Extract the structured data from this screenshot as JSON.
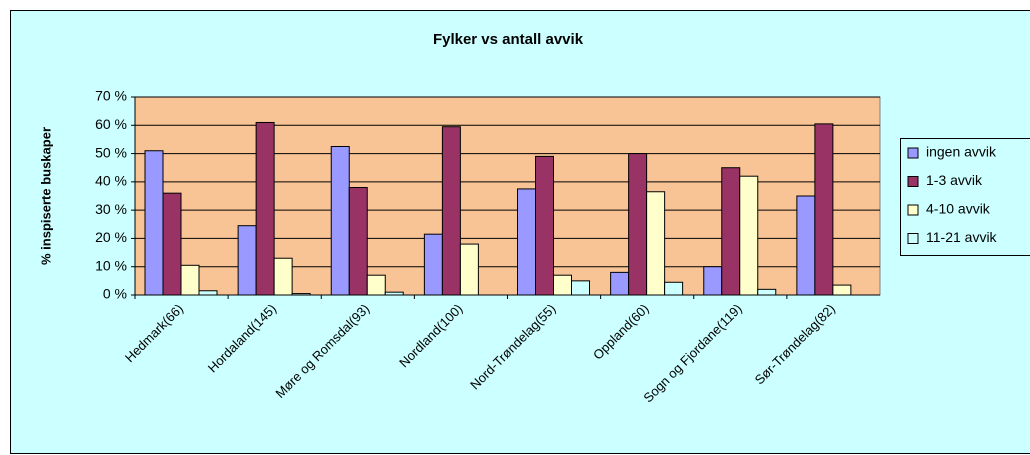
{
  "chart_data": {
    "type": "bar",
    "title": "Fylker vs antall avvik",
    "y_label": "% inspiserte buskaper",
    "categories": [
      "Hedmark(66)",
      "Hordaland(145)",
      "Møre og Romsdal(93)",
      "Nordland(100)",
      "Nord-Trøndelag(55)",
      "Oppland(60)",
      "Sogn og Fjordane(119)",
      "Sør-Trøndelag(82)"
    ],
    "series": [
      {
        "name": "ingen avvik",
        "color": "#9999ff",
        "values": [
          51,
          24.5,
          52.5,
          21.5,
          37.5,
          8,
          10,
          35
        ]
      },
      {
        "name": "1-3 avvik",
        "color": "#993366",
        "values": [
          36,
          61,
          38,
          59.5,
          49,
          50,
          45,
          60.5
        ]
      },
      {
        "name": "4-10 avvik",
        "color": "#ffffcc",
        "values": [
          10.5,
          13,
          7,
          18,
          7,
          36.5,
          42,
          3.5
        ]
      },
      {
        "name": "11-21 avvik",
        "color": "#ccffff",
        "values": [
          1.5,
          0.5,
          1,
          0,
          5,
          4.5,
          2,
          0
        ]
      }
    ],
    "ylim": [
      0,
      70
    ],
    "yticks": [
      {
        "value": 0,
        "label": "0 %"
      },
      {
        "value": 10,
        "label": "10 %"
      },
      {
        "value": 20,
        "label": "20 %"
      },
      {
        "value": 30,
        "label": "30 %"
      },
      {
        "value": 40,
        "label": "40 %"
      },
      {
        "value": 50,
        "label": "50 %"
      },
      {
        "value": 60,
        "label": "60 %"
      },
      {
        "value": 70,
        "label": "70 %"
      }
    ],
    "grid": true,
    "legend": "right"
  }
}
